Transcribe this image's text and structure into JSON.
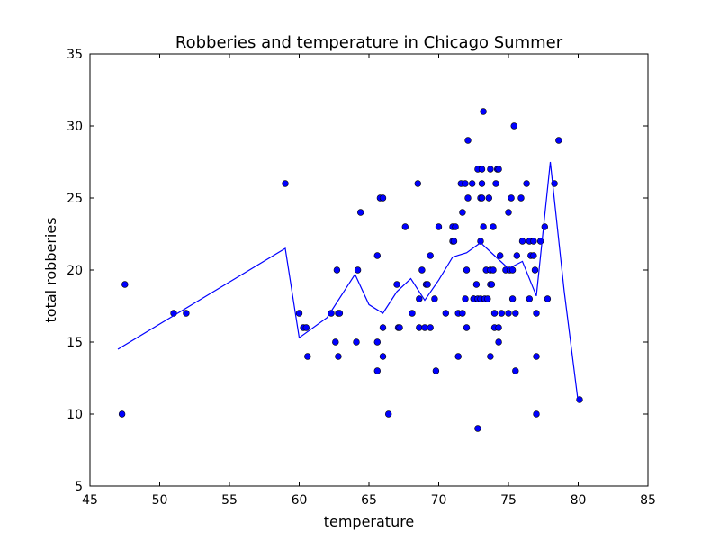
{
  "chart_data": {
    "type": "scatter",
    "title": "Robberies and temperature in Chicago Summer",
    "xlabel": "temperature",
    "ylabel": "total robberies",
    "xlim": [
      45,
      85
    ],
    "ylim": [
      5,
      35
    ],
    "xticks": [
      45,
      50,
      55,
      60,
      65,
      70,
      75,
      80,
      85
    ],
    "yticks": [
      5,
      10,
      15,
      20,
      25,
      30,
      35
    ],
    "grid": false,
    "legend": "none",
    "series": [
      {
        "kind": "scatter",
        "color": "#0000ff",
        "points": [
          [
            47.3,
            10
          ],
          [
            47.5,
            19
          ],
          [
            51.0,
            17
          ],
          [
            51.9,
            17
          ],
          [
            59.0,
            26
          ],
          [
            60.0,
            17
          ],
          [
            60.3,
            16
          ],
          [
            60.5,
            16
          ],
          [
            60.6,
            14
          ],
          [
            62.3,
            17
          ],
          [
            62.6,
            15
          ],
          [
            62.7,
            20
          ],
          [
            62.8,
            14
          ],
          [
            62.8,
            17
          ],
          [
            62.9,
            17
          ],
          [
            64.1,
            15
          ],
          [
            64.2,
            20
          ],
          [
            64.4,
            24
          ],
          [
            65.6,
            21
          ],
          [
            65.6,
            15
          ],
          [
            65.6,
            13
          ],
          [
            65.8,
            25
          ],
          [
            66.0,
            25
          ],
          [
            66.0,
            14
          ],
          [
            66.0,
            16
          ],
          [
            66.4,
            10
          ],
          [
            67.0,
            19
          ],
          [
            67.1,
            16
          ],
          [
            67.2,
            16
          ],
          [
            67.6,
            23
          ],
          [
            68.1,
            17
          ],
          [
            68.5,
            26
          ],
          [
            68.6,
            18
          ],
          [
            68.6,
            16
          ],
          [
            68.8,
            20
          ],
          [
            69.0,
            16
          ],
          [
            69.1,
            19
          ],
          [
            69.2,
            19
          ],
          [
            69.4,
            21
          ],
          [
            69.4,
            16
          ],
          [
            69.7,
            18
          ],
          [
            69.8,
            13
          ],
          [
            70.0,
            23
          ],
          [
            70.5,
            17
          ],
          [
            71.0,
            23
          ],
          [
            71.0,
            22
          ],
          [
            71.1,
            22
          ],
          [
            71.2,
            23
          ],
          [
            71.4,
            14
          ],
          [
            71.4,
            17
          ],
          [
            71.6,
            26
          ],
          [
            71.7,
            24
          ],
          [
            71.7,
            17
          ],
          [
            71.9,
            26
          ],
          [
            71.9,
            18
          ],
          [
            72.0,
            20
          ],
          [
            72.0,
            16
          ],
          [
            72.1,
            29
          ],
          [
            72.1,
            25
          ],
          [
            72.4,
            26
          ],
          [
            72.5,
            18
          ],
          [
            72.5,
            18
          ],
          [
            72.7,
            19
          ],
          [
            72.8,
            18
          ],
          [
            72.8,
            9
          ],
          [
            72.8,
            27
          ],
          [
            73.0,
            25
          ],
          [
            73.0,
            22
          ],
          [
            73.0,
            18
          ],
          [
            73.1,
            27
          ],
          [
            73.1,
            26
          ],
          [
            73.1,
            25
          ],
          [
            73.2,
            31
          ],
          [
            73.2,
            23
          ],
          [
            73.3,
            18
          ],
          [
            73.4,
            20
          ],
          [
            73.5,
            18
          ],
          [
            73.6,
            25
          ],
          [
            73.7,
            27
          ],
          [
            73.7,
            20
          ],
          [
            73.7,
            19
          ],
          [
            73.7,
            14
          ],
          [
            73.8,
            19
          ],
          [
            73.9,
            23
          ],
          [
            73.9,
            20
          ],
          [
            74.0,
            16
          ],
          [
            74.0,
            17
          ],
          [
            74.1,
            26
          ],
          [
            74.2,
            27
          ],
          [
            74.3,
            15
          ],
          [
            74.3,
            16
          ],
          [
            74.3,
            27
          ],
          [
            74.4,
            21
          ],
          [
            74.5,
            17
          ],
          [
            74.8,
            20
          ],
          [
            75.0,
            24
          ],
          [
            75.0,
            17
          ],
          [
            75.1,
            20
          ],
          [
            75.2,
            25
          ],
          [
            75.3,
            18
          ],
          [
            75.3,
            20
          ],
          [
            75.4,
            30
          ],
          [
            75.5,
            13
          ],
          [
            75.5,
            17
          ],
          [
            75.6,
            21
          ],
          [
            75.9,
            25
          ],
          [
            76.0,
            22
          ],
          [
            76.3,
            26
          ],
          [
            76.5,
            22
          ],
          [
            76.5,
            18
          ],
          [
            76.6,
            21
          ],
          [
            76.8,
            22
          ],
          [
            76.8,
            21
          ],
          [
            76.9,
            20
          ],
          [
            77.0,
            17
          ],
          [
            77.0,
            14
          ],
          [
            77.0,
            10
          ],
          [
            77.3,
            22
          ],
          [
            77.6,
            23
          ],
          [
            77.8,
            18
          ],
          [
            78.3,
            26
          ],
          [
            78.6,
            29
          ],
          [
            80.1,
            11
          ]
        ]
      },
      {
        "kind": "line",
        "color": "#0000ff",
        "points": [
          [
            47.0,
            14.5
          ],
          [
            59.0,
            21.5
          ],
          [
            60.0,
            15.3
          ],
          [
            62.0,
            16.7
          ],
          [
            64.0,
            19.7
          ],
          [
            65.0,
            17.6
          ],
          [
            66.0,
            17.0
          ],
          [
            67.0,
            18.5
          ],
          [
            68.0,
            19.4
          ],
          [
            69.0,
            17.9
          ],
          [
            70.0,
            19.3
          ],
          [
            71.0,
            20.9
          ],
          [
            72.0,
            21.2
          ],
          [
            73.0,
            21.9
          ],
          [
            74.0,
            21.0
          ],
          [
            75.0,
            20.1
          ],
          [
            76.0,
            20.6
          ],
          [
            77.0,
            18.2
          ],
          [
            78.0,
            27.5
          ],
          [
            79.0,
            18.5
          ],
          [
            80.0,
            10.8
          ]
        ]
      }
    ]
  }
}
